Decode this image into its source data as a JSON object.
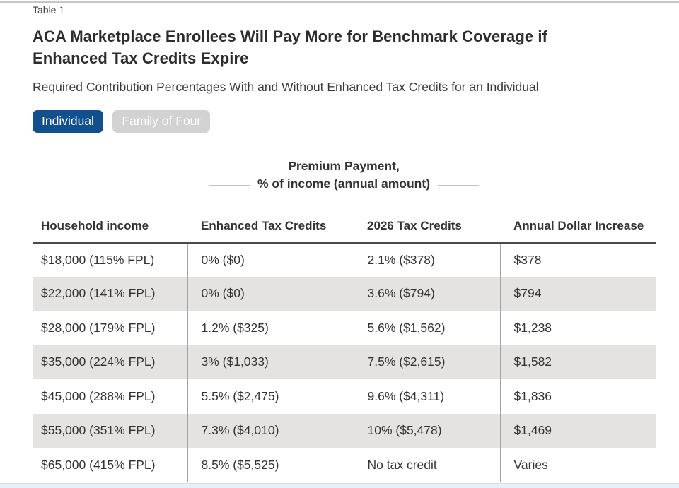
{
  "header": {
    "table_label": "Table 1",
    "title_line1": "ACA Marketplace Enrollees Will Pay More for Benchmark Coverage if",
    "title_line2": "Enhanced Tax Credits Expire",
    "subtitle": "Required Contribution Percentages With and Without Enhanced Tax Credits for an Individual"
  },
  "toggle": {
    "individual_label": "Individual",
    "family_label": "Family of Four",
    "active": "Individual"
  },
  "chart_data": {
    "type": "table",
    "title": "ACA Marketplace Enrollees Will Pay More for Benchmark Coverage if Enhanced Tax Credits Expire",
    "subtitle": "Required Contribution Percentages With and Without Enhanced Tax Credits for an Individual",
    "group_header": {
      "line1": "Premium Payment,",
      "line2": "% of income (annual amount)",
      "spans_columns": [
        "Enhanced Tax Credits",
        "2026 Tax Credits"
      ]
    },
    "columns": [
      "Household income",
      "Enhanced Tax Credits",
      "2026 Tax Credits",
      "Annual Dollar Increase"
    ],
    "rows": [
      [
        "$18,000 (115% FPL)",
        "0% ($0)",
        "2.1% ($378)",
        "$378"
      ],
      [
        "$22,000 (141% FPL)",
        "0% ($0)",
        "3.6% ($794)",
        "$794"
      ],
      [
        "$28,000 (179% FPL)",
        "1.2% ($325)",
        "5.6% ($1,562)",
        "$1,238"
      ],
      [
        "$35,000 (224% FPL)",
        "3% ($1,033)",
        "7.5% ($2,615)",
        "$1,582"
      ],
      [
        "$45,000 (288% FPL)",
        "5.5% ($2,475)",
        "9.6% ($4,311)",
        "$1,836"
      ],
      [
        "$55,000 (351% FPL)",
        "7.3% ($4,010)",
        "10% ($5,478)",
        "$1,469"
      ],
      [
        "$65,000 (415% FPL)",
        "8.5% ($5,525)",
        "No tax credit",
        "Varies"
      ]
    ]
  },
  "colors": {
    "active_toggle": "#11508d",
    "inactive_toggle": "#d2d2d2",
    "row_stripe": "#e4e3e2",
    "header_rule": "#4a4a4a",
    "column_separator": "#a3a3a3",
    "footer_strip": "#e9eff8",
    "title_text": "#2d2d2d"
  }
}
